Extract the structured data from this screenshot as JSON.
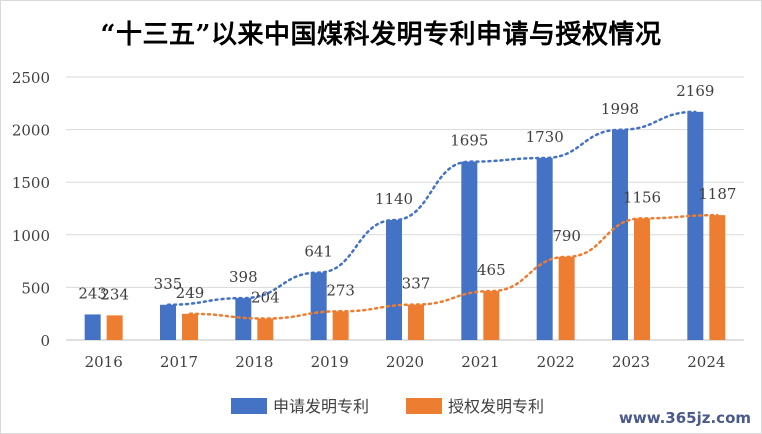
{
  "chart_data": {
    "type": "bar",
    "title": "“十三五”以来中国煤科发明专利申请与授权情况",
    "categories": [
      "2016",
      "2017",
      "2018",
      "2019",
      "2020",
      "2021",
      "2022",
      "2023",
      "2024"
    ],
    "series": [
      {
        "name": "申请发明专利",
        "color": "#4472C4",
        "values": [
          243,
          335,
          398,
          641,
          1140,
          1695,
          1730,
          1998,
          2169
        ]
      },
      {
        "name": "授权发明专利",
        "color": "#ED7D31",
        "values": [
          234,
          249,
          204,
          273,
          337,
          465,
          790,
          1156,
          1187
        ]
      }
    ],
    "trendlines": [
      {
        "series": "申请发明专利",
        "style": "dotted",
        "color": "#4472C4",
        "values": [
          null,
          335,
          398,
          641,
          1140,
          1695,
          1730,
          1998,
          2169
        ]
      },
      {
        "series": "授权发明专利",
        "style": "dotted",
        "color": "#ED7D31",
        "values": [
          null,
          249,
          204,
          273,
          337,
          465,
          790,
          1156,
          1187
        ]
      }
    ],
    "ylim": [
      0,
      2500
    ],
    "yticks": [
      0,
      500,
      1000,
      1500,
      2000,
      2500
    ],
    "grid": true,
    "legend_position": "bottom",
    "data_labels": true
  },
  "watermark": "www.365jz.com"
}
